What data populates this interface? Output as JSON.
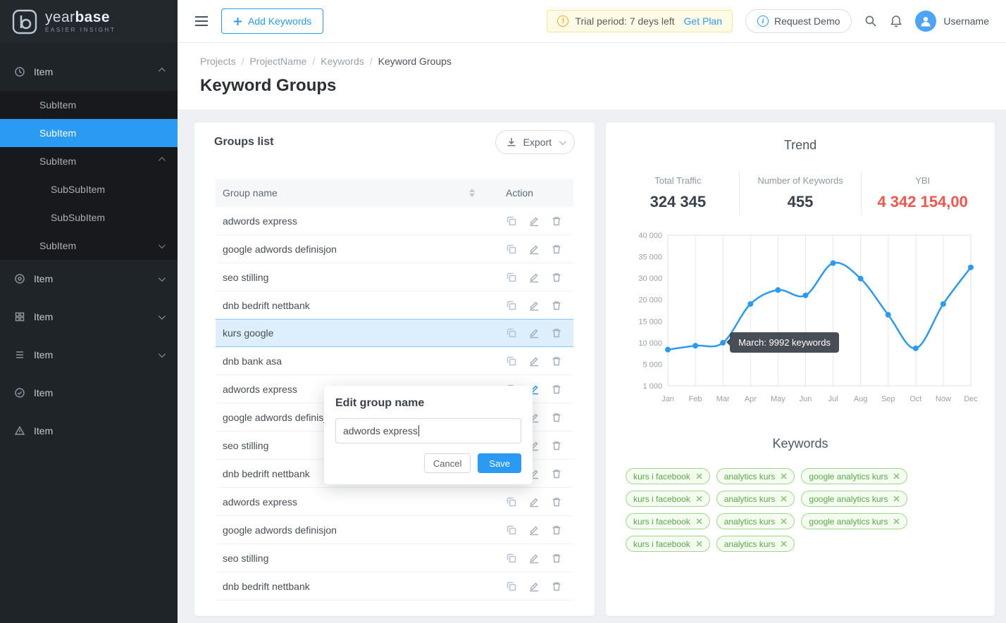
{
  "brand": {
    "name_regular": "year",
    "name_bold": "base",
    "tagline": "EASIER INSIGHT"
  },
  "topbar": {
    "add_keywords_label": "Add Keywords",
    "trial_text": "Trial period: 7 deys left",
    "get_plan_label": "Get Plan",
    "request_demo_label": "Request Demo",
    "username": "Username"
  },
  "sidebar": {
    "items": [
      {
        "label": "Item"
      },
      {
        "label": "SubItem"
      },
      {
        "label": "SubItem"
      },
      {
        "label": "SubItem"
      },
      {
        "label": "SubSubItem"
      },
      {
        "label": "SubSubItem"
      },
      {
        "label": "SubItem"
      },
      {
        "label": "Item"
      },
      {
        "label": "Item"
      },
      {
        "label": "Item"
      },
      {
        "label": "Item"
      },
      {
        "label": "Item"
      }
    ]
  },
  "breadcrumb": {
    "separator": "/",
    "items": [
      "Projects",
      "ProjectName",
      "Keywords",
      "Keyword Groups"
    ]
  },
  "page": {
    "title": "Keyword Groups"
  },
  "groups_panel": {
    "title": "Groups list",
    "export_label": "Export",
    "col_name": "Group name",
    "col_action": "Action",
    "rows": [
      {
        "name": "adwords express"
      },
      {
        "name": "google adwords definisjon"
      },
      {
        "name": "seo stilling"
      },
      {
        "name": "dnb bedrift nettbank"
      },
      {
        "name": "kurs google",
        "highlighted": true
      },
      {
        "name": "dnb bank asa"
      },
      {
        "name": "adwords express",
        "edit_active": true
      },
      {
        "name": "google adwords definisjon"
      },
      {
        "name": "seo stilling"
      },
      {
        "name": "dnb bedrift nettbank"
      },
      {
        "name": "adwords express"
      },
      {
        "name": "google adwords definisjon"
      },
      {
        "name": "seo stilling"
      },
      {
        "name": "dnb bedrift nettbank"
      }
    ]
  },
  "edit_popup": {
    "title": "Edit group name",
    "input_value": "adwords express",
    "cancel_label": "Cancel",
    "save_label": "Save"
  },
  "trend_panel": {
    "title": "Trend",
    "stats": [
      {
        "label": "Total Traffic",
        "value": "324 345"
      },
      {
        "label": "Number of Keywords",
        "value": "455"
      },
      {
        "label": "YBI",
        "value": "4 342 154,00",
        "color": "#f5544d"
      }
    ],
    "tooltip": "March: 9992 keywords"
  },
  "chart_data": {
    "type": "line",
    "title": "Trend",
    "x": [
      "Jan",
      "Feb",
      "Mar",
      "Apr",
      "May",
      "Jun",
      "Jul",
      "Aug",
      "Sep",
      "Oct",
      "Now",
      "Dec"
    ],
    "series": [
      {
        "name": "Keywords",
        "values": [
          8400,
          9300,
          9992,
          19000,
          24500,
          22000,
          33500,
          29800,
          16500,
          8700,
          19000,
          32500
        ]
      }
    ],
    "y_ticks": [
      40000,
      35000,
      30000,
      20000,
      15000,
      10000,
      5000,
      1000
    ],
    "y_tick_labels": [
      "40 000",
      "35 000",
      "30 000",
      "20 000",
      "15 000",
      "10 000",
      "5 000",
      "1 000"
    ],
    "line_color": "#2b9af3",
    "grid": "vertical",
    "annotation": {
      "text": "March: 9992 keywords",
      "x_index": 2
    }
  },
  "keywords_panel": {
    "title": "Keywords",
    "tags": [
      "kurs i facebook",
      "analytics kurs",
      "google analytics kurs",
      "kurs i facebook",
      "analytics kurs",
      "google analytics kurs",
      "kurs i facebook",
      "analytics kurs",
      "google analytics kurs",
      "kurs i facebook",
      "analytics kurs"
    ]
  }
}
